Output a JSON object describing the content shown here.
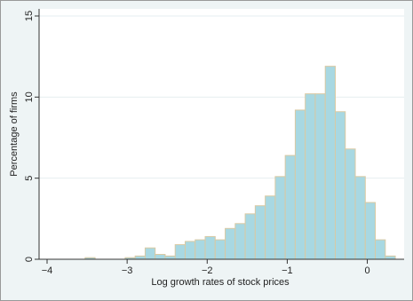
{
  "chart_data": {
    "type": "histogram",
    "x_label": "Log growth rates of stock prices",
    "y_label": "Percentage of firms",
    "bins": [
      -3.525,
      -3.4,
      -3.275,
      -3.15,
      -3.025,
      -2.9,
      -2.775,
      -2.65,
      -2.525,
      -2.4,
      -2.275,
      -2.15,
      -2.025,
      -1.9,
      -1.775,
      -1.65,
      -1.525,
      -1.4,
      -1.275,
      -1.15,
      -1.025,
      -0.9,
      -0.775,
      -0.65,
      -0.525,
      -0.4,
      -0.275,
      -0.15,
      -0.025,
      0.1,
      0.225,
      0.35
    ],
    "values": [
      0.1,
      0,
      0,
      0,
      0.1,
      0.2,
      0.7,
      0.3,
      0.2,
      0.9,
      1.1,
      1.2,
      1.4,
      1.2,
      1.9,
      2.2,
      2.8,
      3.3,
      3.9,
      5.1,
      6.4,
      9.2,
      10.2,
      10.2,
      11.9,
      9.1,
      6.8,
      5.1,
      3.5,
      1.2,
      0.2
    ],
    "color": "#a8d8e2",
    "edge_color": "#d9c9a3",
    "xlim": [
      -4.1,
      0.46
    ],
    "ylim": [
      0,
      15
    ],
    "xticks": [
      {
        "value": -4,
        "label": "−4"
      },
      {
        "value": -3,
        "label": "−3"
      },
      {
        "value": -2,
        "label": "−2"
      },
      {
        "value": -1,
        "label": "−1"
      },
      0
    ],
    "yticks": [
      0,
      5,
      10,
      15
    ],
    "grid": true
  }
}
